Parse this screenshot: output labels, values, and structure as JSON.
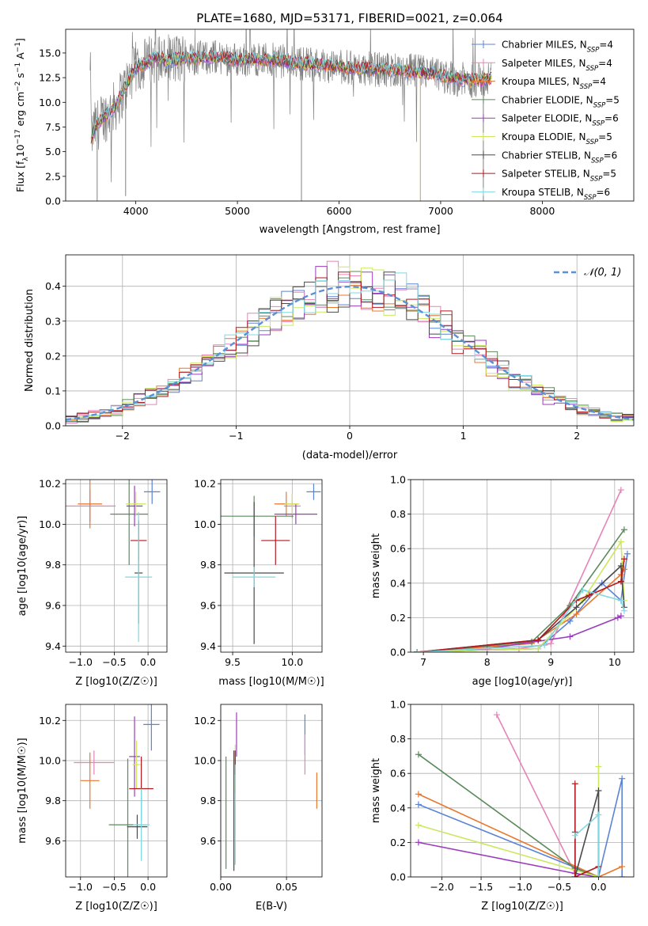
{
  "chart_data": [
    {
      "id": "spectrum",
      "type": "line",
      "title": "PLATE=1680, MJD=53171, FIBERID=0021, z=0.064",
      "xlabel": "wavelength [Angstrom, rest frame]",
      "ylabel": "Flux [f_λ 10^-17 erg cm^-2 s^-1 A^-1]",
      "xlim": [
        3310,
        8900
      ],
      "ylim": [
        0,
        17.4
      ],
      "xticks": [
        4000,
        5000,
        6000,
        7000,
        8000
      ],
      "yticks": [
        0.0,
        2.5,
        5.0,
        7.5,
        10.0,
        12.5,
        15.0
      ],
      "grid": false,
      "legend_position": "top-right",
      "data_wavelength_range": [
        3550,
        7500
      ],
      "legend": [
        {
          "label": "Chabrier MILES",
          "nssp": "4",
          "color": "#5b83d6"
        },
        {
          "label": "Salpeter MILES",
          "nssp": "4",
          "color": "#e683b7"
        },
        {
          "label": "Kroupa MILES",
          "nssp": "4",
          "color": "#e8772e"
        },
        {
          "label": "Chabrier ELODIE",
          "nssp": "5",
          "color": "#5b8a5b"
        },
        {
          "label": "Salpeter ELODIE",
          "nssp": "6",
          "color": "#9a3dbd"
        },
        {
          "label": "Kroupa ELODIE",
          "nssp": "5",
          "color": "#cbe85e"
        },
        {
          "label": "Chabrier STELIB",
          "nssp": "6",
          "color": "#4a4a4a"
        },
        {
          "label": "Salpeter STELIB",
          "nssp": "5",
          "color": "#b0191f"
        },
        {
          "label": "Kroupa STELIB",
          "nssp": "6",
          "color": "#7fd8e0"
        }
      ],
      "observed_color": "#808080",
      "model_envelope": [
        [
          3560,
          6.2
        ],
        [
          3600,
          7.5
        ],
        [
          3700,
          8.6
        ],
        [
          3800,
          9.6
        ],
        [
          3900,
          11.6
        ],
        [
          4000,
          13.5
        ],
        [
          4100,
          14.0
        ],
        [
          4200,
          14.6
        ],
        [
          4300,
          14.2
        ],
        [
          4500,
          14.5
        ],
        [
          4800,
          14.6
        ],
        [
          5000,
          14.3
        ],
        [
          5200,
          14.4
        ],
        [
          5500,
          14.1
        ],
        [
          5800,
          13.8
        ],
        [
          6000,
          13.6
        ],
        [
          6200,
          13.4
        ],
        [
          6500,
          13.3
        ],
        [
          6800,
          13.1
        ],
        [
          7000,
          12.7
        ],
        [
          7200,
          12.3
        ],
        [
          7400,
          12.2
        ],
        [
          7500,
          12.4
        ]
      ]
    },
    {
      "id": "residuals",
      "type": "histogram",
      "xlabel": "(data-model)/error",
      "ylabel": "Normed distribution",
      "xlim": [
        -2.5,
        2.5
      ],
      "ylim": [
        0,
        0.49
      ],
      "xticks": [
        -2,
        -1,
        0,
        1,
        2
      ],
      "yticks": [
        0.0,
        0.1,
        0.2,
        0.3,
        0.4
      ],
      "grid": true,
      "legend_position": "top-right",
      "legend_label": "𝒩(0, 1)",
      "gaussian_color": "#5b8fd6",
      "bin_width": 0.1
    },
    {
      "id": "age-vs-Z",
      "type": "errorbar",
      "xlabel": "Z [log10(Z/Z☉)]",
      "ylabel": "age [log10(age/yr)]",
      "xlim": [
        -1.22,
        0.28
      ],
      "ylim": [
        9.37,
        10.22
      ],
      "xticks": [
        -1.0,
        -0.5,
        0.0
      ],
      "xticklabels": [
        "−1.0",
        "−0.5",
        "0.0"
      ],
      "yticks": [
        9.4,
        9.6,
        9.8,
        10.0,
        10.2
      ],
      "grid": true,
      "points": [
        {
          "x": 0.06,
          "xerr": 0.12,
          "y": 10.16,
          "yerr": 0.06,
          "color": "#5b83d6"
        },
        {
          "x": -0.86,
          "xerr": 0.38,
          "y": 10.09,
          "yerr": 0.08,
          "color": "#e683b7"
        },
        {
          "x": -0.86,
          "xerr": 0.18,
          "y": 10.1,
          "yerr": 0.12,
          "color": "#e8772e"
        },
        {
          "x": -0.28,
          "xerr": 0.28,
          "y": 10.05,
          "yerr": 0.25,
          "color": "#5b8a5b"
        },
        {
          "x": -0.2,
          "xerr": 0.12,
          "y": 10.09,
          "yerr": 0.1,
          "color": "#9a3dbd"
        },
        {
          "x": -0.18,
          "xerr": 0.15,
          "y": 10.1,
          "yerr": 0.06,
          "color": "#cbe85e"
        },
        {
          "x": -0.14,
          "xerr": 0.06,
          "y": 9.76,
          "yerr": 0.25,
          "color": "#4a4a4a"
        },
        {
          "x": -0.14,
          "xerr": 0.12,
          "y": 9.92,
          "yerr": 0.1,
          "color": "#b0191f"
        },
        {
          "x": -0.14,
          "xerr": 0.2,
          "y": 9.74,
          "yerr": 0.32,
          "color": "#7fd8e0"
        }
      ]
    },
    {
      "id": "age-vs-mass",
      "type": "errorbar",
      "xlabel": "mass [log10(M/M☉)]",
      "ylabel": "",
      "xlim": [
        9.4,
        10.25
      ],
      "ylim": [
        9.37,
        10.22
      ],
      "xticks": [
        9.5,
        10.0
      ],
      "xticklabels": [
        "9.5",
        "10.0"
      ],
      "yticks": [
        9.4,
        9.6,
        9.8,
        10.0,
        10.2
      ],
      "grid": true,
      "points": [
        {
          "x": 10.18,
          "xerr": 0.06,
          "y": 10.16,
          "yerr": 0.04,
          "color": "#5b83d6"
        },
        {
          "x": 10.0,
          "xerr": 0.07,
          "y": 10.09,
          "yerr": 0.06,
          "color": "#e683b7"
        },
        {
          "x": 9.95,
          "xerr": 0.1,
          "y": 10.1,
          "yerr": 0.06,
          "color": "#e8772e"
        },
        {
          "x": 9.68,
          "xerr": 0.33,
          "y": 10.04,
          "yerr": 0.1,
          "color": "#5b8a5b"
        },
        {
          "x": 10.03,
          "xerr": 0.18,
          "y": 10.05,
          "yerr": 0.05,
          "color": "#9a3dbd"
        },
        {
          "x": 10.0,
          "xerr": 0.06,
          "y": 10.1,
          "yerr": 0.05,
          "color": "#cbe85e"
        },
        {
          "x": 9.68,
          "xerr": 0.25,
          "y": 9.76,
          "yerr": 0.35,
          "color": "#4a4a4a"
        },
        {
          "x": 9.86,
          "xerr": 0.12,
          "y": 9.92,
          "yerr": 0.12,
          "color": "#b0191f"
        },
        {
          "x": 9.68,
          "xerr": 0.18,
          "y": 9.74,
          "yerr": 0.05,
          "color": "#7fd8e0"
        }
      ]
    },
    {
      "id": "mass-weight-vs-age",
      "type": "line",
      "xlabel": "age [log10(age/yr)]",
      "ylabel": "mass weight",
      "xlim": [
        6.8,
        10.3
      ],
      "ylim": [
        0,
        1.0
      ],
      "xticks": [
        7,
        8,
        9,
        10
      ],
      "yticks": [
        0.0,
        0.2,
        0.4,
        0.6,
        0.8,
        1.0
      ],
      "grid": true,
      "series": [
        {
          "color": "#5b83d6",
          "x": [
            6.9,
            8.8,
            9.3,
            9.8,
            10.1,
            10.2
          ],
          "y": [
            0.0,
            0.02,
            0.18,
            0.4,
            0.3,
            0.57
          ]
        },
        {
          "color": "#e683b7",
          "x": [
            6.9,
            8.5,
            9.0,
            10.1
          ],
          "y": [
            0.0,
            0.02,
            0.05,
            0.94
          ]
        },
        {
          "color": "#e8772e",
          "x": [
            6.9,
            8.7,
            9.4,
            10.1,
            10.15
          ],
          "y": [
            0.0,
            0.05,
            0.22,
            0.45,
            0.48
          ]
        },
        {
          "color": "#5b8a5b",
          "x": [
            6.9,
            8.7,
            9.3,
            10.15
          ],
          "y": [
            0.0,
            0.06,
            0.27,
            0.71
          ]
        },
        {
          "color": "#9a3dbd",
          "x": [
            6.9,
            8.0,
            9.3,
            10.05,
            10.1
          ],
          "y": [
            0.0,
            0.02,
            0.09,
            0.2,
            0.21
          ]
        },
        {
          "color": "#cbe85e",
          "x": [
            6.9,
            8.8,
            9.5,
            10.1,
            10.15
          ],
          "y": [
            0.0,
            0.02,
            0.3,
            0.64,
            0.3
          ]
        },
        {
          "color": "#4a4a4a",
          "x": [
            6.9,
            8.8,
            9.4,
            10.1,
            10.15
          ],
          "y": [
            0.0,
            0.07,
            0.26,
            0.5,
            0.26
          ]
        },
        {
          "color": "#b0191f",
          "x": [
            6.9,
            8.8,
            9.4,
            9.6,
            10.1,
            10.15
          ],
          "y": [
            0.0,
            0.07,
            0.3,
            0.33,
            0.41,
            0.54
          ]
        },
        {
          "color": "#7fd8e0",
          "x": [
            6.9,
            8.9,
            9.5,
            10.1,
            10.15
          ],
          "y": [
            0.0,
            0.04,
            0.36,
            0.3,
            0.24
          ]
        }
      ]
    },
    {
      "id": "mass-vs-Z",
      "type": "errorbar",
      "xlabel": "Z [log10(Z/Z☉)]",
      "ylabel": "mass [log10(M/M☉)]",
      "xlim": [
        -1.22,
        0.28
      ],
      "ylim": [
        9.42,
        10.28
      ],
      "xticks": [
        -1.0,
        -0.5,
        0.0
      ],
      "xticklabels": [
        "−1.0",
        "−0.5",
        "0.0"
      ],
      "yticks": [
        9.6,
        9.8,
        10.0,
        10.2
      ],
      "grid": true,
      "points": [
        {
          "x": 0.05,
          "xerr": 0.12,
          "y": 10.18,
          "yerr": 0.13,
          "color": "#5b83d6"
        },
        {
          "x": -0.8,
          "xerr": 0.3,
          "y": 9.99,
          "yerr": 0.06,
          "color": "#e683b7"
        },
        {
          "x": -0.86,
          "xerr": 0.14,
          "y": 9.9,
          "yerr": 0.14,
          "color": "#e8772e"
        },
        {
          "x": -0.3,
          "xerr": 0.28,
          "y": 9.68,
          "yerr": 0.33,
          "color": "#5b8a5b"
        },
        {
          "x": -0.2,
          "xerr": 0.08,
          "y": 10.02,
          "yerr": 0.2,
          "color": "#9a3dbd"
        },
        {
          "x": -0.17,
          "xerr": 0.06,
          "y": 9.98,
          "yerr": 0.12,
          "color": "#cbe85e"
        },
        {
          "x": -0.16,
          "xerr": 0.15,
          "y": 9.67,
          "yerr": 0.06,
          "color": "#4a4a4a"
        },
        {
          "x": -0.1,
          "xerr": 0.18,
          "y": 9.86,
          "yerr": 0.16,
          "color": "#b0191f"
        },
        {
          "x": -0.1,
          "xerr": 0.12,
          "y": 9.68,
          "yerr": 0.18,
          "color": "#7fd8e0"
        }
      ]
    },
    {
      "id": "mass-vs-EBV",
      "type": "errorbar",
      "xlabel": "E(B-V)",
      "ylabel": "",
      "xlim": [
        0.0,
        0.077
      ],
      "ylim": [
        9.42,
        10.28
      ],
      "xticks": [
        0.0,
        0.05
      ],
      "xticklabels": [
        "0.00",
        "0.05"
      ],
      "yticks": [
        9.6,
        9.8,
        10.0,
        10.2
      ],
      "grid": true,
      "points": [
        {
          "x": 0.064,
          "xerr": 0.0,
          "y": 10.13,
          "yerr": 0.1,
          "color": "#5b83d6"
        },
        {
          "x": 0.064,
          "xerr": 0.0,
          "y": 10.03,
          "yerr": 0.1,
          "color": "#e683b7"
        },
        {
          "x": 0.073,
          "xerr": 0.0,
          "y": 9.85,
          "yerr": 0.09,
          "color": "#e8772e"
        },
        {
          "x": 0.004,
          "xerr": 0.0,
          "y": 9.74,
          "yerr": 0.28,
          "color": "#5b8a5b"
        },
        {
          "x": 0.012,
          "xerr": 0.0,
          "y": 10.13,
          "yerr": 0.11,
          "color": "#9a3dbd"
        },
        {
          "x": 0.011,
          "xerr": 0.0,
          "y": 9.96,
          "yerr": 0.12,
          "color": "#cbe85e"
        },
        {
          "x": 0.01,
          "xerr": 0.0,
          "y": 9.75,
          "yerr": 0.3,
          "color": "#4a4a4a"
        },
        {
          "x": 0.011,
          "xerr": 0.0,
          "y": 9.99,
          "yerr": 0.06,
          "color": "#b0191f"
        },
        {
          "x": 0.011,
          "xerr": 0.0,
          "y": 9.73,
          "yerr": 0.25,
          "color": "#7fd8e0"
        }
      ]
    },
    {
      "id": "mass-weight-vs-Z",
      "type": "line",
      "xlabel": "Z [log10(Z/Z☉)]",
      "ylabel": "mass weight",
      "xlim": [
        -2.4,
        0.45
      ],
      "ylim": [
        0,
        1.0
      ],
      "xticks": [
        -2.0,
        -1.5,
        -1.0,
        -0.5,
        0.0
      ],
      "xticklabels": [
        "−2.0",
        "−1.5",
        "−1.0",
        "−0.5",
        "0.0"
      ],
      "yticks": [
        0.0,
        0.2,
        0.4,
        0.6,
        0.8,
        1.0
      ],
      "grid": true,
      "series": [
        {
          "color": "#5b83d6",
          "x": [
            -2.3,
            0.0,
            0.3,
            0.3
          ],
          "y": [
            0.42,
            0.0,
            0.57,
            0.0
          ]
        },
        {
          "color": "#e683b7",
          "x": [
            -1.3,
            -0.3,
            0.0
          ],
          "y": [
            0.94,
            0.02,
            0.0
          ]
        },
        {
          "color": "#e8772e",
          "x": [
            -2.3,
            0.0,
            0.3
          ],
          "y": [
            0.48,
            0.0,
            0.06
          ]
        },
        {
          "color": "#5b8a5b",
          "x": [
            -2.3,
            -0.3,
            0.0
          ],
          "y": [
            0.71,
            0.05,
            0.0
          ]
        },
        {
          "color": "#9a3dbd",
          "x": [
            -2.3,
            -0.3,
            0.0
          ],
          "y": [
            0.2,
            0.02,
            0.0
          ]
        },
        {
          "color": "#cbe85e",
          "x": [
            -2.3,
            0.0,
            0.0
          ],
          "y": [
            0.3,
            0.0,
            0.64
          ]
        },
        {
          "color": "#4a4a4a",
          "x": [
            -0.3,
            -0.3,
            0.0,
            0.0
          ],
          "y": [
            0.26,
            0.0,
            0.5,
            0.0
          ]
        },
        {
          "color": "#b0191f",
          "x": [
            -0.3,
            -0.3,
            0.0,
            0.0
          ],
          "y": [
            0.54,
            0.0,
            0.06,
            0.0
          ]
        },
        {
          "color": "#7fd8e0",
          "x": [
            -0.3,
            0.0,
            0.0
          ],
          "y": [
            0.24,
            0.36,
            0.0
          ]
        }
      ]
    }
  ]
}
